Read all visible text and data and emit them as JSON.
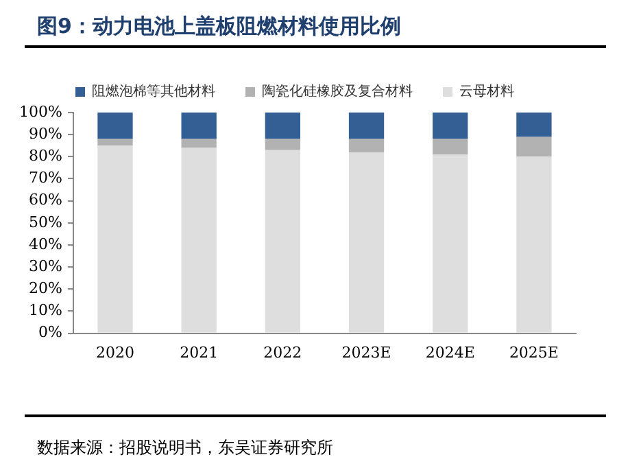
{
  "chart_data": {
    "type": "bar",
    "title": "图9：动力电池上盖板阻燃材料使用比例",
    "categories": [
      "2020",
      "2021",
      "2022",
      "2023E",
      "2024E",
      "2025E"
    ],
    "series": [
      {
        "name": "云母材料",
        "color": "#dedede",
        "values": [
          85,
          84,
          83,
          82,
          81,
          80
        ]
      },
      {
        "name": "陶瓷化硅橡胶及复合材料",
        "color": "#b2b2b2",
        "values": [
          3,
          4,
          5,
          6,
          7,
          9
        ]
      },
      {
        "name": "阻燃泡棉等其他材料",
        "color": "#335f94",
        "values": [
          12,
          12,
          12,
          12,
          12,
          11
        ]
      }
    ],
    "stacked": true,
    "ylim": [
      0,
      100
    ],
    "yticks": [
      {
        "value": 0,
        "label": "0%"
      },
      {
        "value": 10,
        "label": "10%"
      },
      {
        "value": 20,
        "label": "20%"
      },
      {
        "value": 30,
        "label": "30%"
      },
      {
        "value": 40,
        "label": "40%"
      },
      {
        "value": 50,
        "label": "50%"
      },
      {
        "value": 60,
        "label": "60%"
      },
      {
        "value": 70,
        "label": "70%"
      },
      {
        "value": 80,
        "label": "80%"
      },
      {
        "value": 90,
        "label": "90%"
      },
      {
        "value": 100,
        "label": "100%"
      }
    ],
    "grid": false,
    "legend": "top",
    "annotations": [
      "数据来源：招股说明书，东吴证券研究所"
    ]
  }
}
